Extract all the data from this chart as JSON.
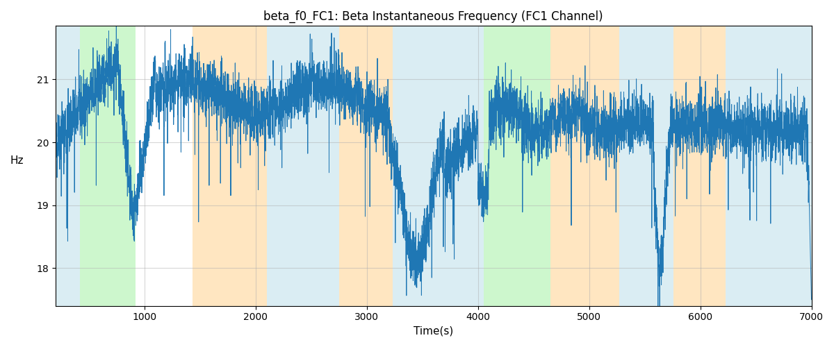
{
  "title": "beta_f0_FC1: Beta Instantaneous Frequency (FC1 Channel)",
  "xlabel": "Time(s)",
  "ylabel": "Hz",
  "xlim": [
    200,
    7000
  ],
  "ylim": [
    17.4,
    21.85
  ],
  "yticks": [
    18,
    19,
    20,
    21
  ],
  "xticks": [
    1000,
    2000,
    3000,
    4000,
    5000,
    6000,
    7000
  ],
  "figsize": [
    12.0,
    5.0
  ],
  "dpi": 100,
  "bg_regions": [
    {
      "xmin": 200,
      "xmax": 420,
      "color": "#add8e6",
      "alpha": 0.45
    },
    {
      "xmin": 420,
      "xmax": 920,
      "color": "#90ee90",
      "alpha": 0.45
    },
    {
      "xmin": 920,
      "xmax": 1430,
      "color": "#ffffff",
      "alpha": 0.0
    },
    {
      "xmin": 1430,
      "xmax": 2100,
      "color": "#ffd9a0",
      "alpha": 0.65
    },
    {
      "xmin": 2100,
      "xmax": 2750,
      "color": "#add8e6",
      "alpha": 0.45
    },
    {
      "xmin": 2750,
      "xmax": 3230,
      "color": "#ffd9a0",
      "alpha": 0.65
    },
    {
      "xmin": 3230,
      "xmax": 3900,
      "color": "#add8e6",
      "alpha": 0.45
    },
    {
      "xmin": 3900,
      "xmax": 4050,
      "color": "#add8e6",
      "alpha": 0.45
    },
    {
      "xmin": 4050,
      "xmax": 4650,
      "color": "#90ee90",
      "alpha": 0.45
    },
    {
      "xmin": 4650,
      "xmax": 5270,
      "color": "#ffd9a0",
      "alpha": 0.65
    },
    {
      "xmin": 5270,
      "xmax": 5760,
      "color": "#add8e6",
      "alpha": 0.45
    },
    {
      "xmin": 5760,
      "xmax": 6230,
      "color": "#ffd9a0",
      "alpha": 0.65
    },
    {
      "xmin": 6230,
      "xmax": 7000,
      "color": "#add8e6",
      "alpha": 0.45
    }
  ],
  "line_color": "#1f77b4",
  "line_width": 0.7,
  "grid_color": "#b0b0b0",
  "grid_alpha": 0.5,
  "seed": 42,
  "n_points": 6800,
  "t_start": 200,
  "t_end": 7000
}
